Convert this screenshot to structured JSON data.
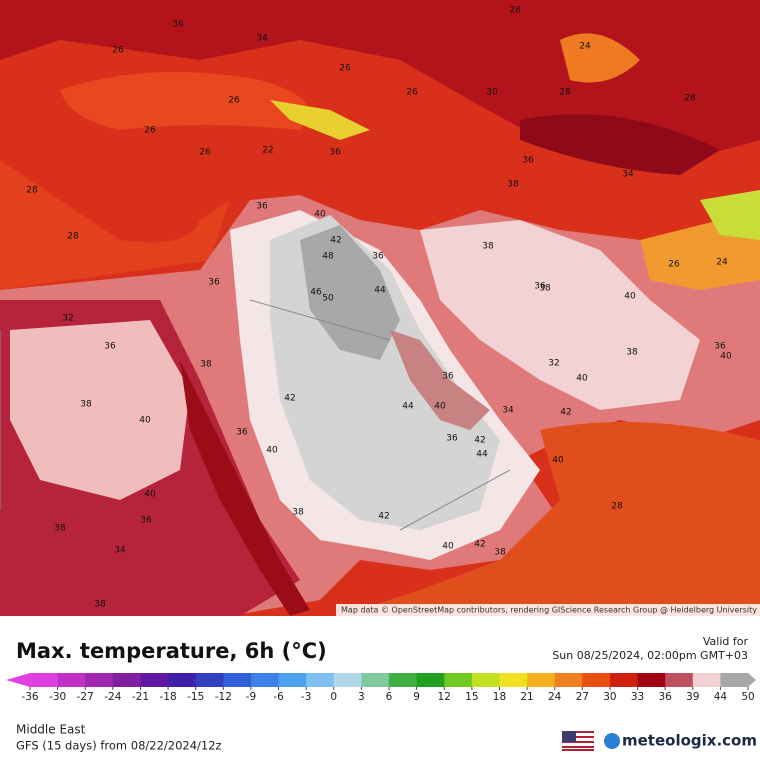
{
  "header": {
    "title": "Max. temperature, 6h (°C)",
    "valid_label": "Valid for",
    "valid_time": "Sun 08/25/2024, 02:00pm GMT+03"
  },
  "map": {
    "attribution": "Map data © OpenStreetMap contributors, rendering GIScience Research Group @ Heidelberg University",
    "labels": [
      "36",
      "26",
      "34",
      "28",
      "24",
      "26",
      "26",
      "26",
      "28",
      "28",
      "30",
      "26",
      "22",
      "26",
      "36",
      "36",
      "34",
      "38",
      "28",
      "40",
      "36",
      "42",
      "48",
      "36",
      "46",
      "50",
      "44",
      "36",
      "28",
      "32",
      "36",
      "38",
      "38",
      "42",
      "44",
      "40",
      "36",
      "34",
      "40",
      "36",
      "40",
      "36",
      "42",
      "44",
      "40",
      "38",
      "36",
      "38",
      "42",
      "28",
      "40",
      "40",
      "42",
      "38",
      "34",
      "38",
      "36",
      "38",
      "40",
      "38",
      "40",
      "42",
      "36",
      "40",
      "24",
      "26",
      "38",
      "32"
    ]
  },
  "colorbar": {
    "ticks": [
      -36,
      -30,
      -27,
      -24,
      -21,
      -18,
      -15,
      -12,
      -9,
      -6,
      -3,
      0,
      3,
      6,
      9,
      12,
      15,
      18,
      21,
      24,
      27,
      30,
      33,
      36,
      39,
      44,
      50
    ],
    "colors": [
      "#e040e0",
      "#c030c8",
      "#a028b0",
      "#8020a0",
      "#6018a0",
      "#4020a8",
      "#3040c0",
      "#3060d8",
      "#3c80e8",
      "#50a0f0",
      "#80c0f0",
      "#b0d8e8",
      "#80c8a0",
      "#40b040",
      "#20a020",
      "#70c820",
      "#c0e020",
      "#f0e020",
      "#f0b020",
      "#f08020",
      "#e85010",
      "#d02010",
      "#a00010",
      "#c05060",
      "#f0d0d0",
      "#a8a8a8"
    ]
  },
  "footer": {
    "region": "Middle East",
    "model": "GFS (15 days) from 08/22/2024/12z",
    "brand": "meteologix.com"
  }
}
